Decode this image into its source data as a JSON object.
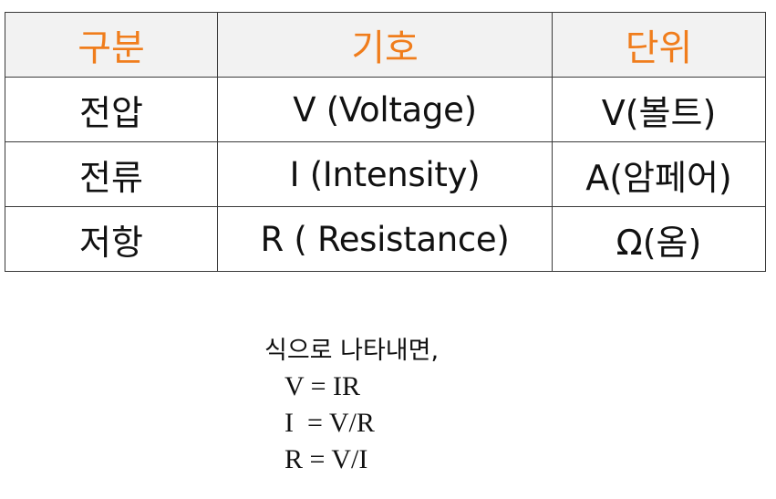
{
  "table": {
    "headers": [
      "구분",
      "기호",
      "단위"
    ],
    "rows": [
      [
        "전압",
        "V (Voltage)",
        "V(볼트)"
      ],
      [
        "전류",
        "I (Intensity)",
        "A(암페어)"
      ],
      [
        "저항",
        "R ( Resistance)",
        "Ω(옴)"
      ]
    ]
  },
  "formulas": {
    "intro": "식으로 나타내면,",
    "lines": [
      "V = IR",
      "I  = V/R",
      "R = V/I"
    ]
  },
  "colors": {
    "header_text": "#f07d1c",
    "header_background": "#f2f2f2",
    "border": "#3a3a3a"
  }
}
